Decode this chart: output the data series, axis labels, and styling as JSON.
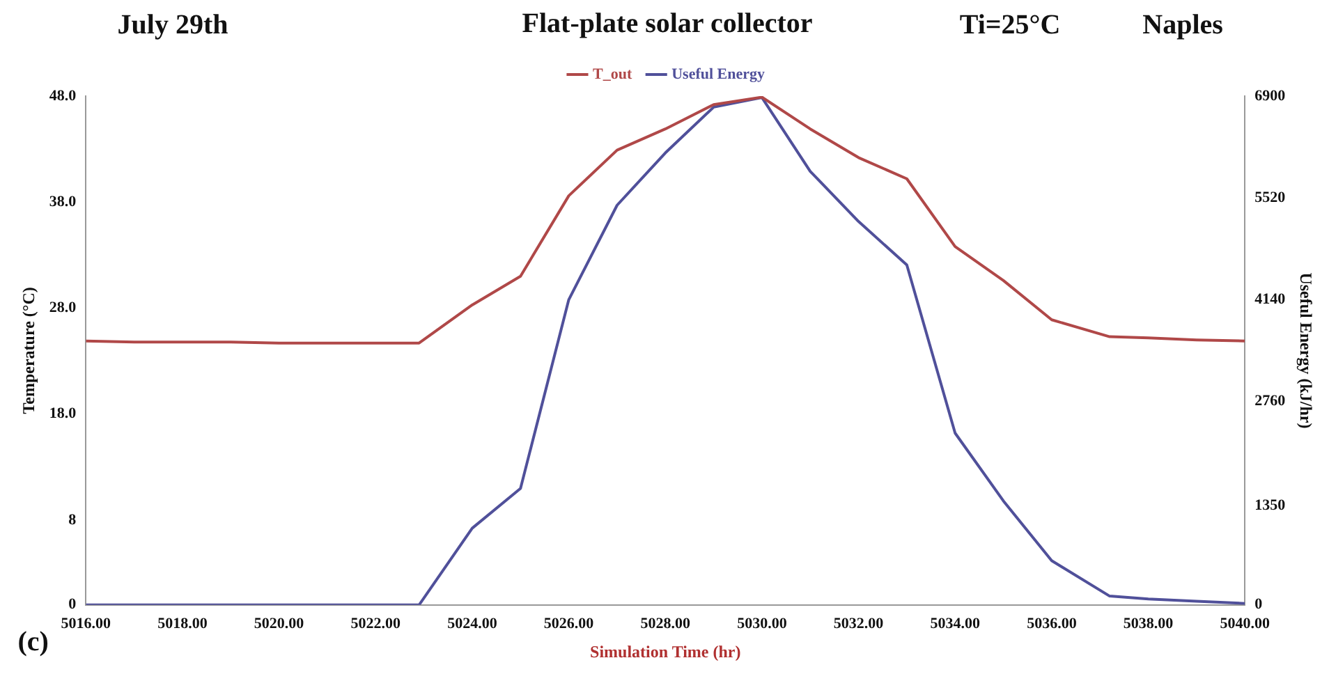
{
  "chart_data": {
    "type": "line",
    "title": "Flat-plate solar collector",
    "xlabel": "Simulation Time (hr)",
    "ylabel": "Temperature (°C)",
    "y2label": "Useful Energy (kJ/hr)",
    "annotations": [
      "July 29th",
      "Ti=25°C",
      "Naples",
      "(c)"
    ],
    "x": [
      5016,
      5017,
      5018,
      5019,
      5020,
      5021,
      5022,
      5022.9,
      5024,
      5025,
      5026,
      5027,
      5028,
      5029,
      5030,
      5031,
      5032,
      5033,
      5034,
      5035,
      5036,
      5037.2,
      5038,
      5039,
      5040
    ],
    "series": [
      {
        "name": "T_out",
        "color": "#b04848",
        "values": [
          24.9,
          24.8,
          24.8,
          24.8,
          24.7,
          24.7,
          24.7,
          24.7,
          28.3,
          31.0,
          38.6,
          42.9,
          44.9,
          47.2,
          47.9,
          44.9,
          42.2,
          40.2,
          33.8,
          30.6,
          26.9,
          25.3,
          25.2,
          25.0,
          24.9
        ]
      },
      {
        "name": "Useful Energy",
        "color": "#50509a",
        "axis": "y2",
        "values": [
          0,
          0,
          0,
          0,
          0,
          0,
          0,
          0,
          1040,
          1580,
          4140,
          5420,
          6130,
          6750,
          6880,
          5880,
          5200,
          4610,
          2330,
          1410,
          600,
          120,
          80,
          50,
          20
        ]
      }
    ],
    "xlim": [
      5016,
      5040
    ],
    "xticks": [
      {
        "value": 5016,
        "label": "5016.00"
      },
      {
        "value": 5018,
        "label": "5018.00"
      },
      {
        "value": 5020,
        "label": "5020.00"
      },
      {
        "value": 5022,
        "label": "5022.00"
      },
      {
        "value": 5024,
        "label": "5024.00"
      },
      {
        "value": 5026,
        "label": "5026.00"
      },
      {
        "value": 5028,
        "label": "5028.00"
      },
      {
        "value": 5030,
        "label": "5030.00"
      },
      {
        "value": 5032,
        "label": "5032.00"
      },
      {
        "value": 5034,
        "label": "5034.00"
      },
      {
        "value": 5036,
        "label": "5036.00"
      },
      {
        "value": 5038,
        "label": "5038.00"
      },
      {
        "value": 5040,
        "label": "5040.00"
      }
    ],
    "ylim": [
      0,
      48
    ],
    "yticks": [
      0,
      8,
      {
        "value": 18,
        "label": "18.0"
      },
      {
        "value": 28,
        "label": "28.0"
      },
      {
        "value": 38,
        "label": "38.0"
      },
      {
        "value": 48,
        "label": "48.0"
      }
    ],
    "y2lim": [
      0,
      6900
    ],
    "y2ticks": [
      0,
      1350,
      2760,
      4140,
      5520,
      6900
    ],
    "grid": false,
    "legend": "top",
    "marker": "none",
    "line_style": "solid"
  }
}
